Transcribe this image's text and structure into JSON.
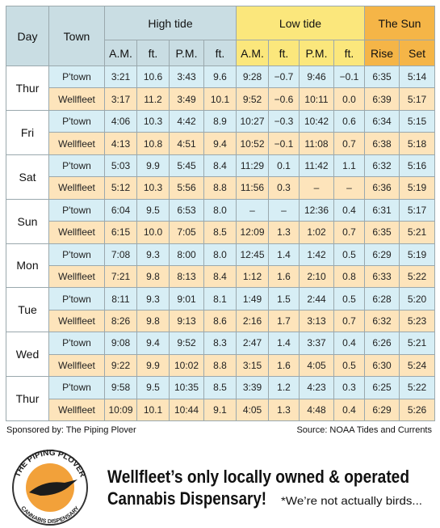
{
  "table": {
    "headers": {
      "day": "Day",
      "town": "Town",
      "high": "High tide",
      "low": "Low tide",
      "sun": "The Sun",
      "sub": [
        "A.M.",
        "ft.",
        "P.M.",
        "ft.",
        "A.M.",
        "ft.",
        "P.M.",
        "ft.",
        "Rise",
        "Set"
      ]
    },
    "days": [
      {
        "day": "Thur",
        "rows": [
          [
            "P'town",
            "3:21",
            "10.6",
            "3:43",
            "9.6",
            "9:28",
            "−0.7",
            "9:46",
            "−0.1",
            "6:35",
            "5:14"
          ],
          [
            "Wellfleet",
            "3:17",
            "11.2",
            "3:49",
            "10.1",
            "9:52",
            "−0.6",
            "10:11",
            "0.0",
            "6:39",
            "5:17"
          ]
        ]
      },
      {
        "day": "Fri",
        "rows": [
          [
            "P'town",
            "4:06",
            "10.3",
            "4:42",
            "8.9",
            "10:27",
            "−0.3",
            "10:42",
            "0.6",
            "6:34",
            "5:15"
          ],
          [
            "Wellfleet",
            "4:13",
            "10.8",
            "4:51",
            "9.4",
            "10:52",
            "−0.1",
            "11:08",
            "0.7",
            "6:38",
            "5:18"
          ]
        ]
      },
      {
        "day": "Sat",
        "rows": [
          [
            "P'town",
            "5:03",
            "9.9",
            "5:45",
            "8.4",
            "11:29",
            "0.1",
            "11:42",
            "1.1",
            "6:32",
            "5:16"
          ],
          [
            "Wellfleet",
            "5:12",
            "10.3",
            "5:56",
            "8.8",
            "11:56",
            "0.3",
            "–",
            "–",
            "6:36",
            "5:19"
          ]
        ]
      },
      {
        "day": "Sun",
        "rows": [
          [
            "P'town",
            "6:04",
            "9.5",
            "6:53",
            "8.0",
            "–",
            "–",
            "12:36",
            "0.4",
            "6:31",
            "5:17"
          ],
          [
            "Wellfleet",
            "6:15",
            "10.0",
            "7:05",
            "8.5",
            "12:09",
            "1.3",
            "1:02",
            "0.7",
            "6:35",
            "5:21"
          ]
        ]
      },
      {
        "day": "Mon",
        "rows": [
          [
            "P'town",
            "7:08",
            "9.3",
            "8:00",
            "8.0",
            "12:45",
            "1.4",
            "1:42",
            "0.5",
            "6:29",
            "5:19"
          ],
          [
            "Wellfleet",
            "7:21",
            "9.8",
            "8:13",
            "8.4",
            "1:12",
            "1.6",
            "2:10",
            "0.8",
            "6:33",
            "5:22"
          ]
        ]
      },
      {
        "day": "Tue",
        "rows": [
          [
            "P'town",
            "8:11",
            "9.3",
            "9:01",
            "8.1",
            "1:49",
            "1.5",
            "2:44",
            "0.5",
            "6:28",
            "5:20"
          ],
          [
            "Wellfleet",
            "8:26",
            "9.8",
            "9:13",
            "8.6",
            "2:16",
            "1.7",
            "3:13",
            "0.7",
            "6:32",
            "5:23"
          ]
        ]
      },
      {
        "day": "Wed",
        "rows": [
          [
            "P'town",
            "9:08",
            "9.4",
            "9:52",
            "8.3",
            "2:47",
            "1.4",
            "3:37",
            "0.4",
            "6:26",
            "5:21"
          ],
          [
            "Wellfleet",
            "9:22",
            "9.9",
            "10:02",
            "8.8",
            "3:15",
            "1.6",
            "4:05",
            "0.5",
            "6:30",
            "5:24"
          ]
        ]
      },
      {
        "day": "Thur",
        "rows": [
          [
            "P'town",
            "9:58",
            "9.5",
            "10:35",
            "8.5",
            "3:39",
            "1.2",
            "4:23",
            "0.3",
            "6:25",
            "5:22"
          ],
          [
            "Wellfleet",
            "10:09",
            "10.1",
            "10:44",
            "9.1",
            "4:05",
            "1.3",
            "4:48",
            "0.4",
            "6:29",
            "5:26"
          ]
        ]
      }
    ]
  },
  "footer": {
    "sponsor": "Sponsored by: The Piping Plover",
    "source": "Source: NOAA Tides and Currents"
  },
  "ad": {
    "logo_top": "THE PIPING PLOVER",
    "logo_bottom": "CANNABIS DISPENSARY",
    "headline": [
      "Wellfleet’s only locally owned & operated",
      "Cannabis Dispensary!"
    ],
    "note": "*We’re not actually birds..."
  }
}
